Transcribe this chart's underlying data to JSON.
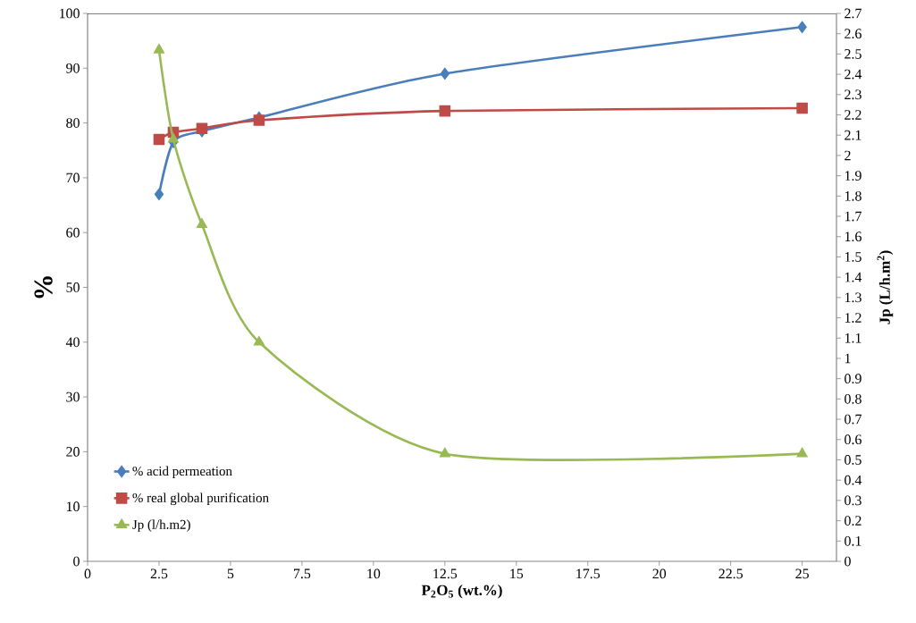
{
  "chart_data": {
    "type": "line",
    "xlabel": "P$_{2}$O$_{5}$ (wt.%)",
    "ylabel": "%",
    "y2label": "Jp (L/h.m$^{2}$)",
    "x": [
      2.5,
      3,
      4,
      6,
      12.5,
      25
    ],
    "series": [
      {
        "name": "% acid permeation",
        "color": "#4a7ebb",
        "marker": "diamond",
        "values": [
          67,
          76.5,
          78.5,
          81,
          89,
          97.5
        ]
      },
      {
        "name": "% real global purification",
        "color": "#be4b48",
        "marker": "square",
        "values": [
          77,
          78.3,
          79,
          80.5,
          82.2,
          82.7
        ]
      },
      {
        "name": "Jp (l/h.m2)",
        "color": "#98b954",
        "marker": "triangle",
        "axis": "y2",
        "values": [
          2.52,
          2.08,
          1.66,
          1.08,
          0.53,
          0.53
        ]
      }
    ],
    "xlim": [
      0,
      26.2
    ],
    "xticks": [
      0,
      2.5,
      5,
      7.5,
      10,
      12.5,
      15,
      17.5,
      20,
      22.5,
      25
    ],
    "ylim": [
      0,
      100
    ],
    "yticks": [
      0,
      10,
      20,
      30,
      40,
      50,
      60,
      70,
      80,
      90,
      100
    ],
    "y2lim": [
      0,
      2.7
    ],
    "y2ticks": [
      0,
      0.1,
      0.2,
      0.3,
      0.4,
      0.5,
      0.6,
      0.7,
      0.8,
      0.9,
      1,
      1.1,
      1.2,
      1.3,
      1.4,
      1.5,
      1.6,
      1.7,
      1.8,
      1.9,
      2,
      2.1,
      2.2,
      2.3,
      2.4,
      2.5,
      2.6,
      2.7
    ],
    "legend": "bottom left",
    "grid": false,
    "line_style": "solid"
  }
}
